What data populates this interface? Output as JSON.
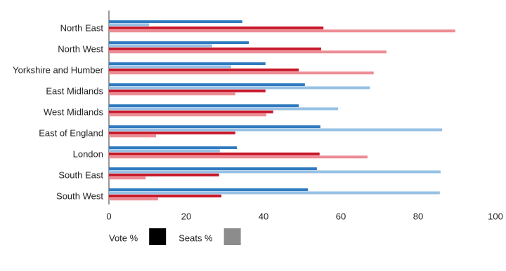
{
  "chart_data": {
    "type": "hbar",
    "categories": [
      "North East",
      "North West",
      "Yorkshire and Humber",
      "East Midlands",
      "West Midlands",
      "East of England",
      "London",
      "South East",
      "South West"
    ],
    "series": [
      {
        "color": "#2f7abf",
        "values": [
          34.5,
          36.2,
          40.5,
          50.7,
          49.1,
          54.7,
          33.1,
          53.8,
          51.5
        ]
      },
      {
        "color": "#98c1e4",
        "values": [
          10.4,
          26.7,
          31.6,
          67.5,
          59.3,
          86.2,
          28.7,
          85.8,
          85.6
        ]
      },
      {
        "color": "#c8182a",
        "values": [
          55.5,
          54.9,
          49.1,
          40.5,
          42.5,
          32.7,
          54.5,
          28.5,
          29.1
        ]
      },
      {
        "color": "#ec8c94",
        "values": [
          89.6,
          71.8,
          68.5,
          32.7,
          40.7,
          12.2,
          66.9,
          9.5,
          12.7
        ]
      }
    ],
    "xlim": [
      0,
      100
    ],
    "xticks": [
      0,
      20,
      40,
      60,
      80,
      100
    ],
    "grid": false,
    "legend": [
      {
        "label": "Vote %",
        "color": "#000000"
      },
      {
        "label": "Seats %",
        "color": "#8c8c8c"
      }
    ]
  }
}
